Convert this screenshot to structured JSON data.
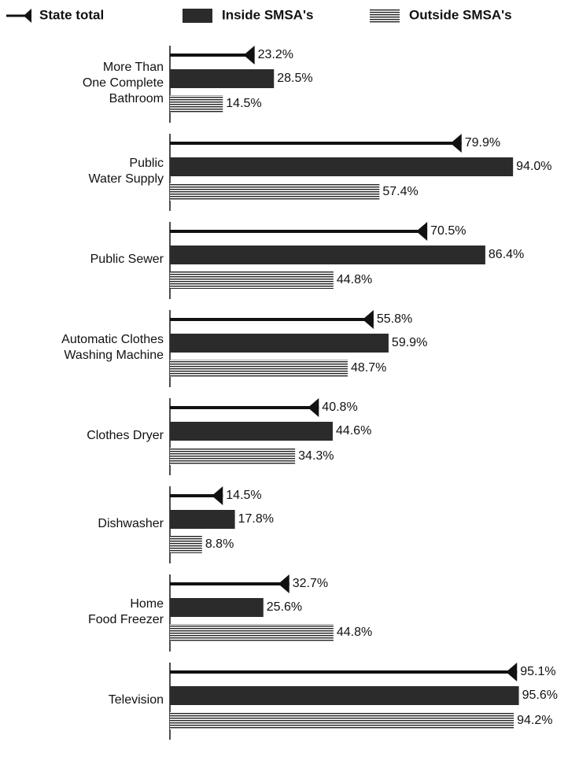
{
  "chart_data": {
    "type": "bar",
    "orientation": "horizontal",
    "categories": [
      [
        "More Than",
        "One Complete",
        "Bathroom"
      ],
      [
        "Public",
        "Water Supply"
      ],
      [
        "Public Sewer"
      ],
      [
        "Automatic Clothes",
        "Washing Machine"
      ],
      [
        "Clothes Dryer"
      ],
      [
        "Dishwasher"
      ],
      [
        "Home",
        "Food Freezer"
      ],
      [
        "Television"
      ]
    ],
    "series": [
      {
        "name": "State total",
        "color": "#111111",
        "values": [
          23.2,
          79.9,
          70.5,
          55.8,
          40.8,
          14.5,
          32.7,
          95.1
        ],
        "value_labels": [
          "23.2%",
          "79.9%",
          "70.5%",
          "55.8%",
          "40.8%",
          "14.5%",
          "32.7%",
          "95.1%"
        ]
      },
      {
        "name": "Inside SMSA's",
        "color": "#2b2b2b",
        "values": [
          28.5,
          94.0,
          86.4,
          59.9,
          44.6,
          17.8,
          25.6,
          95.6
        ],
        "value_labels": [
          "28.5%",
          "94.0%",
          "86.4%",
          "59.9%",
          "44.6%",
          "17.8%",
          "25.6%",
          "95.6%"
        ]
      },
      {
        "name": "Outside SMSA's",
        "color": "#222222",
        "values": [
          14.5,
          57.4,
          44.8,
          48.7,
          34.3,
          8.8,
          44.8,
          94.2
        ],
        "value_labels": [
          "14.5%",
          "57.4%",
          "44.8%",
          "48.7%",
          "34.3%",
          "8.8%",
          "44.8%",
          "94.2%"
        ]
      }
    ],
    "xlim": [
      0,
      100
    ],
    "legend": "top"
  }
}
